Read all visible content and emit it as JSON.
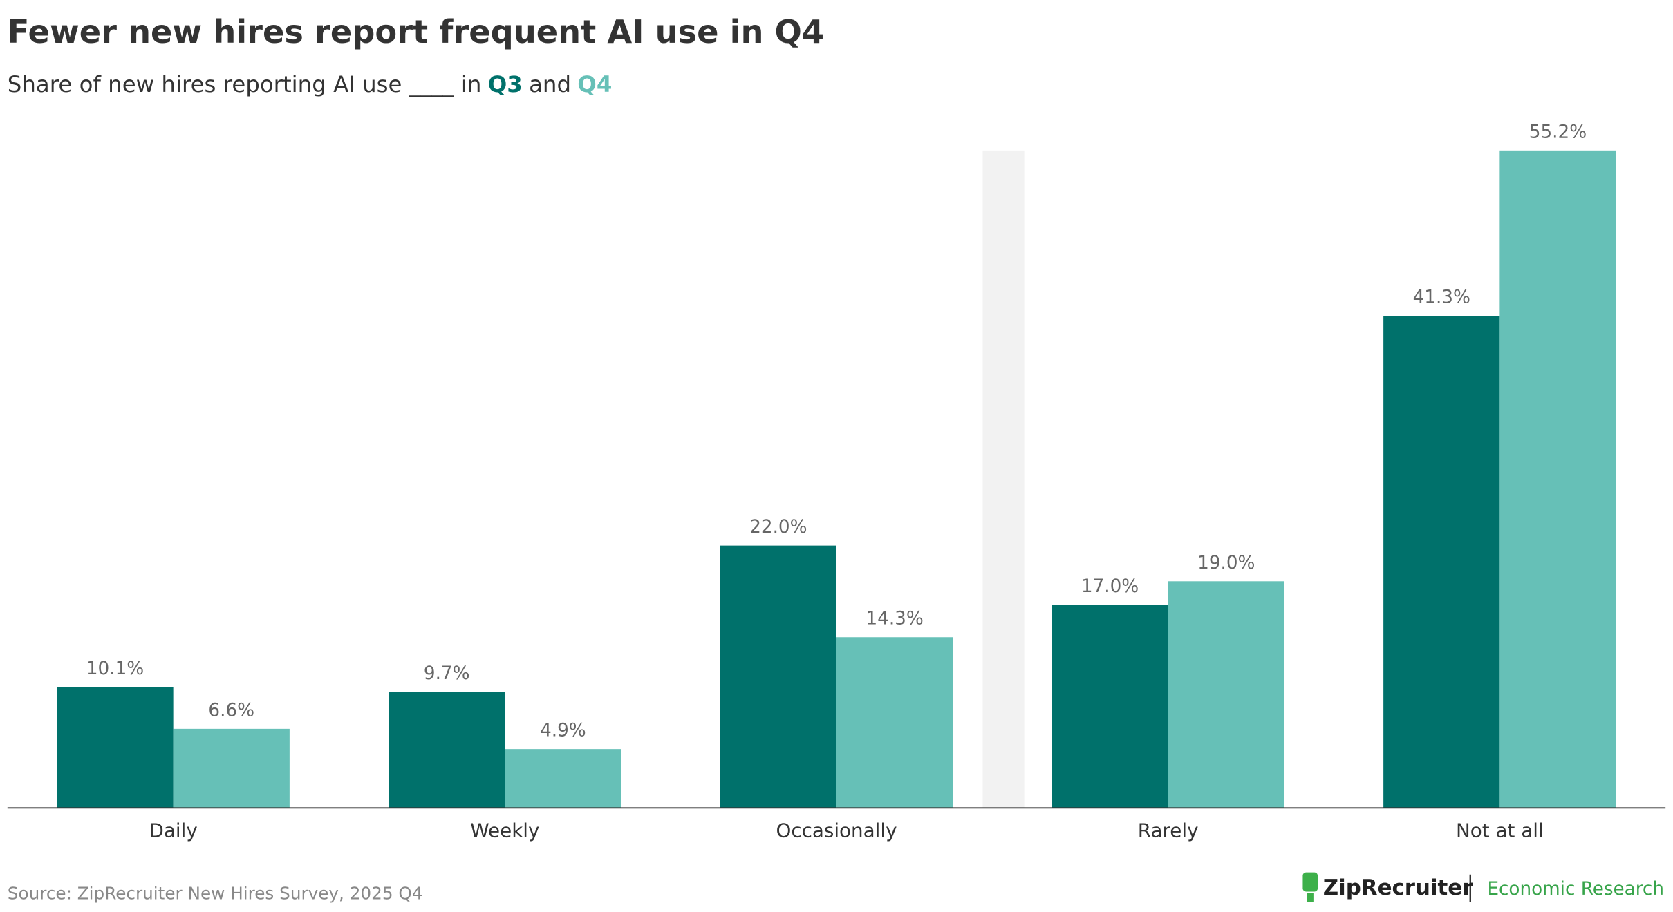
{
  "chart_data": {
    "type": "bar",
    "title": "Fewer new hires report frequent AI use in Q4",
    "subtitle": [
      "Share of new hires reporting AI use ____ in",
      "and"
    ],
    "categories": [
      "Daily",
      "Weekly",
      "Occasionally",
      "Rarely",
      "Not at all"
    ],
    "series": [
      {
        "name": "Q3",
        "color": "#00716b",
        "values": [
          10.1,
          9.7,
          22.0,
          17.0,
          41.3
        ],
        "value_labels": [
          "10.1%",
          "9.7%",
          "22.0%",
          "17.0%",
          "41.3%"
        ]
      },
      {
        "name": "Q4",
        "color": "#66c0b7",
        "values": [
          6.6,
          4.9,
          14.3,
          19.0,
          55.2
        ],
        "value_labels": [
          "6.6%",
          "4.9%",
          "14.3%",
          "19.0%",
          "55.2%"
        ]
      }
    ],
    "source": "Source: ZipRecruiter New Hires Survey, 2025 Q4",
    "brand": "ZipRecruiter",
    "brand_unit": "Economic Research"
  }
}
